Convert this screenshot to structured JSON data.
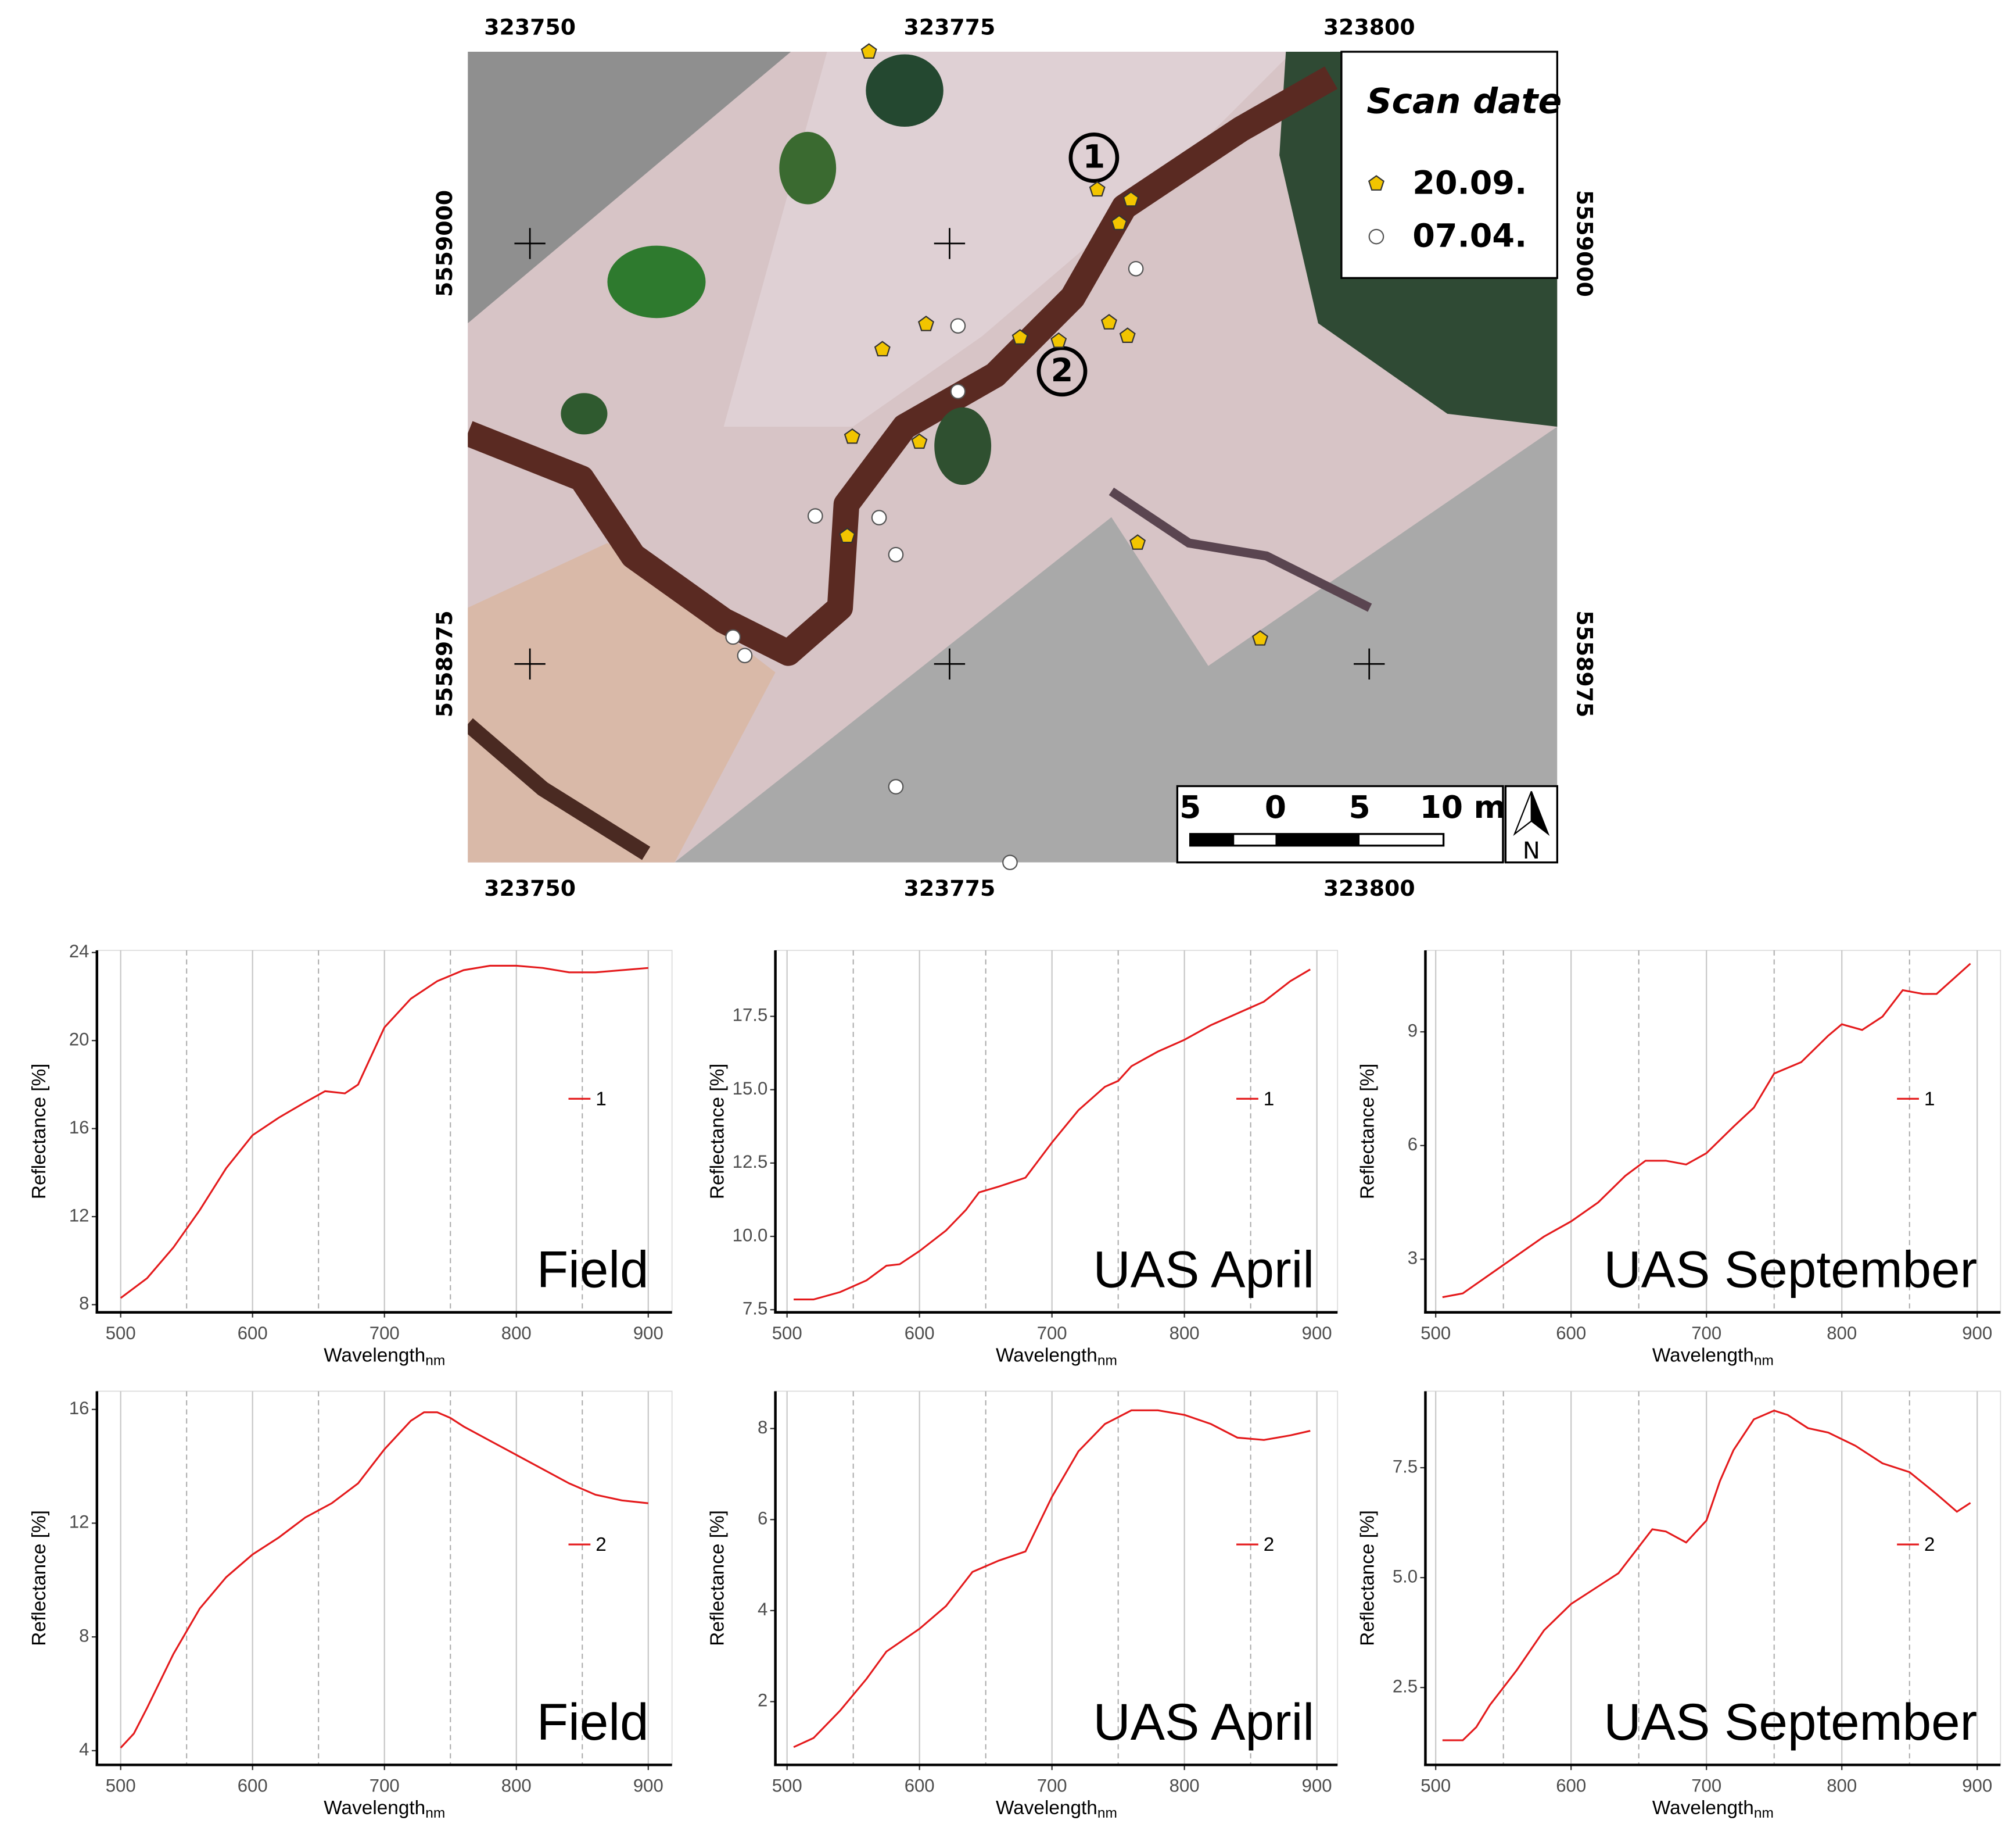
{
  "map": {
    "xlim": [
      323746.3,
      323811.2
    ],
    "ylim": [
      5558963.2,
      5559011.4
    ],
    "xticks": [
      323750,
      323775,
      323800
    ],
    "yticks": [
      5559000,
      5558975
    ],
    "legend": {
      "title": "Scan date"
    },
    "points": [
      {
        "name": "20.09.",
        "color": "#f2c500",
        "shape": "pentagon",
        "x": [
          323770.2,
          323783.8,
          323785.8,
          323785.1,
          323773.6,
          323771.0,
          323779.2,
          323781.5,
          323784.5,
          323785.6,
          323769.2,
          323773.2,
          323768.9,
          323786.2,
          323793.5
        ],
        "y": [
          5559011.4,
          5559003.2,
          5559002.6,
          5559001.2,
          5558995.2,
          5558993.7,
          5558994.4,
          5558994.2,
          5558995.3,
          5558994.5,
          5558988.5,
          5558988.2,
          5558982.6,
          5558982.2,
          5558976.5
        ]
      },
      {
        "name": "07.04.",
        "color": "#ffffff",
        "shape": "circle",
        "x": [
          323786.1,
          323775.5,
          323775.5,
          323767.0,
          323770.8,
          323771.8,
          323762.1,
          323762.8,
          323771.8,
          323778.6
        ],
        "y": [
          5558998.5,
          5558995.1,
          5558991.2,
          5558983.8,
          5558983.7,
          5558981.5,
          5558976.6,
          5558975.5,
          5558967.7,
          5558963.2
        ]
      }
    ],
    "sites": [
      {
        "label": "1",
        "x": 323783.6,
        "y": 5559005.1
      },
      {
        "label": "2",
        "x": 323781.7,
        "y": 5558992.4
      }
    ],
    "scale_bar": {
      "labels": [
        "5",
        "0",
        "5",
        "10 m"
      ]
    },
    "north": "N"
  },
  "chart_data": [
    {
      "type": "line",
      "panel_label": "Field",
      "y_label": "Reflectance [%]",
      "x_label": "Wavelength",
      "x_label_sub": "nm",
      "x": [
        500,
        520,
        540,
        560,
        580,
        600,
        620,
        640,
        655,
        670,
        680,
        690,
        700,
        720,
        740,
        760,
        780,
        800,
        820,
        840,
        860,
        880,
        900
      ],
      "series": [
        {
          "name": "1",
          "color": "#e41a1c",
          "values": [
            8.3,
            9.2,
            10.6,
            12.3,
            14.2,
            15.7,
            16.5,
            17.2,
            17.7,
            17.6,
            18.0,
            19.3,
            20.6,
            21.9,
            22.7,
            23.2,
            23.4,
            23.4,
            23.3,
            23.1,
            23.1,
            23.2,
            23.3
          ]
        }
      ],
      "xlim": [
        482,
        918
      ],
      "ylim": [
        7.65,
        24.1
      ],
      "xticks": [
        500,
        600,
        700,
        800,
        900
      ],
      "yticks": [
        8,
        12,
        16,
        20,
        24
      ],
      "xminor": [
        550,
        650,
        750,
        850
      ],
      "grid": true
    },
    {
      "type": "line",
      "panel_label": "UAS April",
      "y_label": "Reflectance [%]",
      "x_label": "Wavelength",
      "x_label_sub": "nm",
      "x": [
        505,
        520,
        540,
        560,
        575,
        585,
        600,
        620,
        635,
        645,
        660,
        680,
        700,
        720,
        740,
        750,
        760,
        780,
        800,
        820,
        840,
        860,
        880,
        895
      ],
      "series": [
        {
          "name": "1",
          "color": "#e41a1c",
          "values": [
            7.85,
            7.85,
            8.1,
            8.5,
            9.0,
            9.05,
            9.5,
            10.2,
            10.9,
            11.5,
            11.7,
            12.0,
            13.2,
            14.3,
            15.1,
            15.3,
            15.8,
            16.3,
            16.7,
            17.2,
            17.6,
            18.0,
            18.7,
            19.1
          ]
        }
      ],
      "xlim": [
        491.2,
        915.6
      ],
      "ylim": [
        7.41,
        19.75
      ],
      "xticks": [
        500,
        600,
        700,
        800,
        900
      ],
      "yticks": [
        7.5,
        {
          "value": 10,
          "label": "10.0"
        },
        12.5,
        {
          "value": 15,
          "label": "15.0"
        },
        17.5
      ],
      "xminor": [
        550,
        650,
        750,
        850
      ],
      "grid": true
    },
    {
      "type": "line",
      "panel_label": "UAS September",
      "y_label": "Reflectance [%]",
      "x_label": "Wavelength",
      "x_label_sub": "nm",
      "x": [
        505,
        520,
        540,
        560,
        580,
        600,
        620,
        640,
        655,
        670,
        685,
        700,
        720,
        735,
        750,
        770,
        790,
        800,
        815,
        830,
        845,
        860,
        870,
        895
      ],
      "series": [
        {
          "name": "1",
          "color": "#e41a1c",
          "values": [
            2.0,
            2.1,
            2.6,
            3.1,
            3.6,
            4.0,
            4.5,
            5.2,
            5.6,
            5.6,
            5.5,
            5.8,
            6.5,
            7.0,
            7.9,
            8.2,
            8.9,
            9.2,
            9.05,
            9.4,
            10.1,
            10.0,
            10.0,
            10.8
          ]
        }
      ],
      "xlim": [
        492.4,
        917.2
      ],
      "ylim": [
        1.6,
        11.15
      ],
      "xticks": [
        500,
        600,
        700,
        800,
        900
      ],
      "yticks": [
        3,
        6,
        9
      ],
      "xminor": [
        550,
        650,
        750,
        850
      ],
      "grid": true
    },
    {
      "type": "line",
      "panel_label": "Field",
      "y_label": "Reflectance [%]",
      "x_label": "Wavelength",
      "x_label_sub": "nm",
      "x": [
        500,
        510,
        520,
        540,
        560,
        580,
        600,
        620,
        640,
        660,
        680,
        700,
        720,
        730,
        740,
        750,
        760,
        780,
        800,
        820,
        840,
        860,
        880,
        900
      ],
      "series": [
        {
          "name": "2",
          "color": "#e41a1c",
          "values": [
            4.1,
            4.6,
            5.5,
            7.4,
            9.0,
            10.1,
            10.9,
            11.5,
            12.2,
            12.7,
            13.4,
            14.6,
            15.6,
            15.9,
            15.9,
            15.7,
            15.4,
            14.9,
            14.4,
            13.9,
            13.4,
            13.0,
            12.8,
            12.7
          ]
        }
      ],
      "xlim": [
        482,
        918
      ],
      "ylim": [
        3.5,
        16.64
      ],
      "xticks": [
        500,
        600,
        700,
        800,
        900
      ],
      "yticks": [
        4,
        8,
        12,
        16
      ],
      "xminor": [
        550,
        650,
        750,
        850
      ],
      "grid": true
    },
    {
      "type": "line",
      "panel_label": "UAS April",
      "y_label": "Reflectance [%]",
      "x_label": "Wavelength",
      "x_label_sub": "nm",
      "x": [
        505,
        520,
        540,
        560,
        575,
        600,
        620,
        640,
        660,
        680,
        700,
        720,
        740,
        760,
        780,
        800,
        820,
        840,
        860,
        880,
        895
      ],
      "series": [
        {
          "name": "2",
          "color": "#e41a1c",
          "values": [
            1.0,
            1.2,
            1.8,
            2.5,
            3.1,
            3.6,
            4.1,
            4.85,
            5.1,
            5.3,
            6.5,
            7.5,
            8.1,
            8.4,
            8.4,
            8.3,
            8.1,
            7.8,
            7.75,
            7.85,
            7.95
          ]
        }
      ],
      "xlim": [
        491.2,
        915.6
      ],
      "ylim": [
        0.61,
        8.82
      ],
      "xticks": [
        500,
        600,
        700,
        800,
        900
      ],
      "yticks": [
        2,
        4,
        6,
        8
      ],
      "xminor": [
        550,
        650,
        750,
        850
      ],
      "grid": true
    },
    {
      "type": "line",
      "panel_label": "UAS September",
      "y_label": "Reflectance [%]",
      "x_label": "Wavelength",
      "x_label_sub": "nm",
      "x": [
        505,
        520,
        530,
        540,
        560,
        580,
        600,
        620,
        635,
        645,
        660,
        670,
        685,
        700,
        710,
        720,
        735,
        750,
        760,
        775,
        790,
        810,
        830,
        850,
        870,
        885,
        895
      ],
      "series": [
        {
          "name": "2",
          "color": "#e41a1c",
          "values": [
            1.3,
            1.3,
            1.6,
            2.1,
            2.9,
            3.8,
            4.4,
            4.8,
            5.1,
            5.5,
            6.1,
            6.05,
            5.8,
            6.3,
            7.2,
            7.9,
            8.6,
            8.8,
            8.7,
            8.4,
            8.3,
            8.0,
            7.6,
            7.4,
            6.9,
            6.5,
            6.7
          ]
        }
      ],
      "xlim": [
        492.4,
        917.2
      ],
      "ylim": [
        0.74,
        9.24
      ],
      "xticks": [
        500,
        600,
        700,
        800,
        900
      ],
      "yticks": [
        2.5,
        {
          "value": 5,
          "label": "5.0"
        },
        7.5
      ],
      "xminor": [
        550,
        650,
        750,
        850
      ],
      "grid": true
    }
  ]
}
